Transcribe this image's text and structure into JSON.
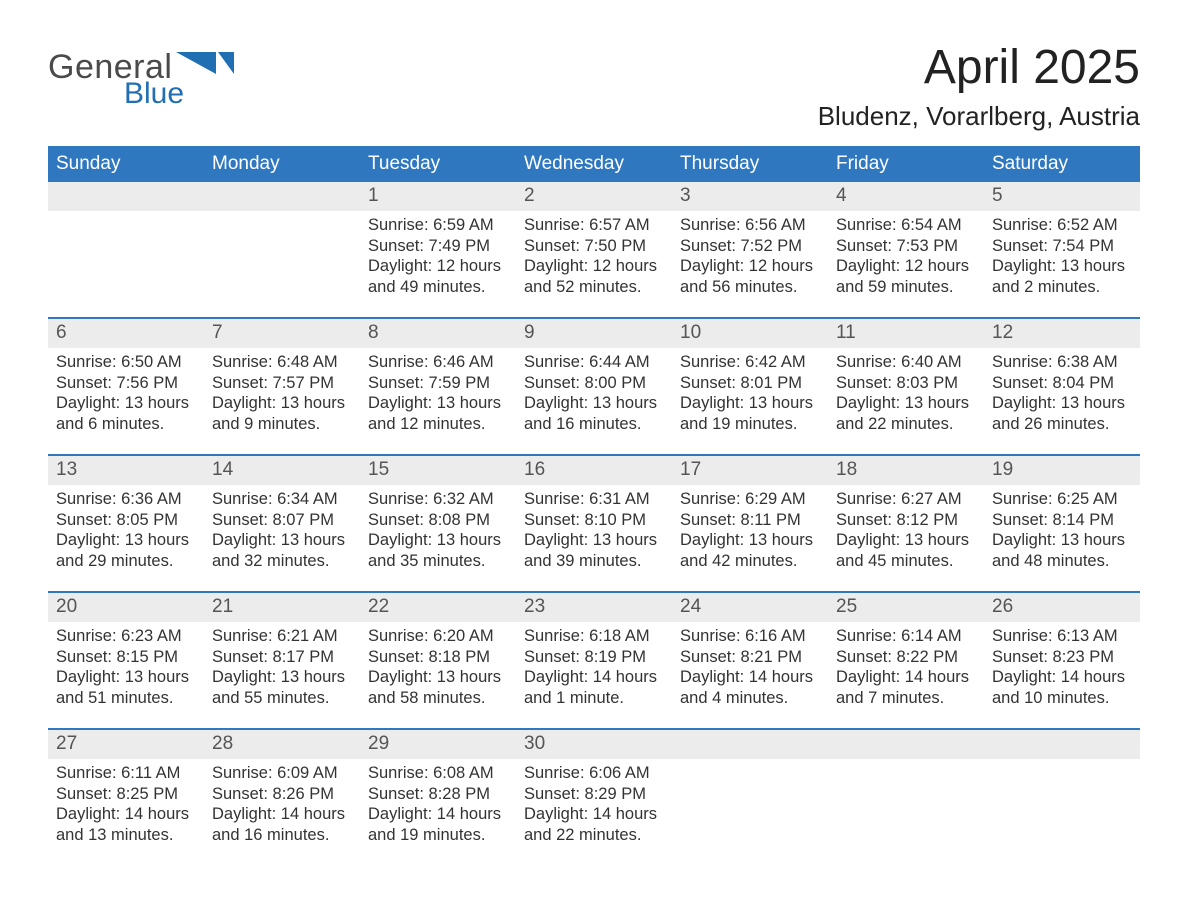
{
  "brand": {
    "word1": "General",
    "word2": "Blue",
    "word1_color": "#4a4a4a",
    "word2_color": "#1f6fb2",
    "triangle_color": "#1f6fb2"
  },
  "title": "April 2025",
  "location": "Bludenz, Vorarlberg, Austria",
  "colors": {
    "header_bg": "#2f78bf",
    "header_text": "#ffffff",
    "daynum_bg": "#ececec",
    "week_divider": "#2f78bf",
    "body_text": "#333333",
    "page_bg": "#ffffff"
  },
  "fonts": {
    "title_size_pt": 36,
    "location_size_pt": 20,
    "weekday_size_pt": 14,
    "daynum_size_pt": 14,
    "body_size_pt": 12
  },
  "weekdays": [
    "Sunday",
    "Monday",
    "Tuesday",
    "Wednesday",
    "Thursday",
    "Friday",
    "Saturday"
  ],
  "weeks": [
    [
      {
        "num": "",
        "lines": []
      },
      {
        "num": "",
        "lines": []
      },
      {
        "num": "1",
        "lines": [
          "Sunrise: 6:59 AM",
          "Sunset: 7:49 PM",
          "Daylight: 12 hours",
          "and 49 minutes."
        ]
      },
      {
        "num": "2",
        "lines": [
          "Sunrise: 6:57 AM",
          "Sunset: 7:50 PM",
          "Daylight: 12 hours",
          "and 52 minutes."
        ]
      },
      {
        "num": "3",
        "lines": [
          "Sunrise: 6:56 AM",
          "Sunset: 7:52 PM",
          "Daylight: 12 hours",
          "and 56 minutes."
        ]
      },
      {
        "num": "4",
        "lines": [
          "Sunrise: 6:54 AM",
          "Sunset: 7:53 PM",
          "Daylight: 12 hours",
          "and 59 minutes."
        ]
      },
      {
        "num": "5",
        "lines": [
          "Sunrise: 6:52 AM",
          "Sunset: 7:54 PM",
          "Daylight: 13 hours",
          "and 2 minutes."
        ]
      }
    ],
    [
      {
        "num": "6",
        "lines": [
          "Sunrise: 6:50 AM",
          "Sunset: 7:56 PM",
          "Daylight: 13 hours",
          "and 6 minutes."
        ]
      },
      {
        "num": "7",
        "lines": [
          "Sunrise: 6:48 AM",
          "Sunset: 7:57 PM",
          "Daylight: 13 hours",
          "and 9 minutes."
        ]
      },
      {
        "num": "8",
        "lines": [
          "Sunrise: 6:46 AM",
          "Sunset: 7:59 PM",
          "Daylight: 13 hours",
          "and 12 minutes."
        ]
      },
      {
        "num": "9",
        "lines": [
          "Sunrise: 6:44 AM",
          "Sunset: 8:00 PM",
          "Daylight: 13 hours",
          "and 16 minutes."
        ]
      },
      {
        "num": "10",
        "lines": [
          "Sunrise: 6:42 AM",
          "Sunset: 8:01 PM",
          "Daylight: 13 hours",
          "and 19 minutes."
        ]
      },
      {
        "num": "11",
        "lines": [
          "Sunrise: 6:40 AM",
          "Sunset: 8:03 PM",
          "Daylight: 13 hours",
          "and 22 minutes."
        ]
      },
      {
        "num": "12",
        "lines": [
          "Sunrise: 6:38 AM",
          "Sunset: 8:04 PM",
          "Daylight: 13 hours",
          "and 26 minutes."
        ]
      }
    ],
    [
      {
        "num": "13",
        "lines": [
          "Sunrise: 6:36 AM",
          "Sunset: 8:05 PM",
          "Daylight: 13 hours",
          "and 29 minutes."
        ]
      },
      {
        "num": "14",
        "lines": [
          "Sunrise: 6:34 AM",
          "Sunset: 8:07 PM",
          "Daylight: 13 hours",
          "and 32 minutes."
        ]
      },
      {
        "num": "15",
        "lines": [
          "Sunrise: 6:32 AM",
          "Sunset: 8:08 PM",
          "Daylight: 13 hours",
          "and 35 minutes."
        ]
      },
      {
        "num": "16",
        "lines": [
          "Sunrise: 6:31 AM",
          "Sunset: 8:10 PM",
          "Daylight: 13 hours",
          "and 39 minutes."
        ]
      },
      {
        "num": "17",
        "lines": [
          "Sunrise: 6:29 AM",
          "Sunset: 8:11 PM",
          "Daylight: 13 hours",
          "and 42 minutes."
        ]
      },
      {
        "num": "18",
        "lines": [
          "Sunrise: 6:27 AM",
          "Sunset: 8:12 PM",
          "Daylight: 13 hours",
          "and 45 minutes."
        ]
      },
      {
        "num": "19",
        "lines": [
          "Sunrise: 6:25 AM",
          "Sunset: 8:14 PM",
          "Daylight: 13 hours",
          "and 48 minutes."
        ]
      }
    ],
    [
      {
        "num": "20",
        "lines": [
          "Sunrise: 6:23 AM",
          "Sunset: 8:15 PM",
          "Daylight: 13 hours",
          "and 51 minutes."
        ]
      },
      {
        "num": "21",
        "lines": [
          "Sunrise: 6:21 AM",
          "Sunset: 8:17 PM",
          "Daylight: 13 hours",
          "and 55 minutes."
        ]
      },
      {
        "num": "22",
        "lines": [
          "Sunrise: 6:20 AM",
          "Sunset: 8:18 PM",
          "Daylight: 13 hours",
          "and 58 minutes."
        ]
      },
      {
        "num": "23",
        "lines": [
          "Sunrise: 6:18 AM",
          "Sunset: 8:19 PM",
          "Daylight: 14 hours",
          "and 1 minute."
        ]
      },
      {
        "num": "24",
        "lines": [
          "Sunrise: 6:16 AM",
          "Sunset: 8:21 PM",
          "Daylight: 14 hours",
          "and 4 minutes."
        ]
      },
      {
        "num": "25",
        "lines": [
          "Sunrise: 6:14 AM",
          "Sunset: 8:22 PM",
          "Daylight: 14 hours",
          "and 7 minutes."
        ]
      },
      {
        "num": "26",
        "lines": [
          "Sunrise: 6:13 AM",
          "Sunset: 8:23 PM",
          "Daylight: 14 hours",
          "and 10 minutes."
        ]
      }
    ],
    [
      {
        "num": "27",
        "lines": [
          "Sunrise: 6:11 AM",
          "Sunset: 8:25 PM",
          "Daylight: 14 hours",
          "and 13 minutes."
        ]
      },
      {
        "num": "28",
        "lines": [
          "Sunrise: 6:09 AM",
          "Sunset: 8:26 PM",
          "Daylight: 14 hours",
          "and 16 minutes."
        ]
      },
      {
        "num": "29",
        "lines": [
          "Sunrise: 6:08 AM",
          "Sunset: 8:28 PM",
          "Daylight: 14 hours",
          "and 19 minutes."
        ]
      },
      {
        "num": "30",
        "lines": [
          "Sunrise: 6:06 AM",
          "Sunset: 8:29 PM",
          "Daylight: 14 hours",
          "and 22 minutes."
        ]
      },
      {
        "num": "",
        "lines": []
      },
      {
        "num": "",
        "lines": []
      },
      {
        "num": "",
        "lines": []
      }
    ]
  ]
}
